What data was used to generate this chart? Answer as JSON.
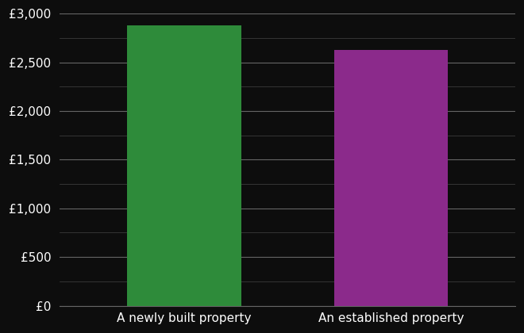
{
  "categories": [
    "A newly built property",
    "An established property"
  ],
  "values": [
    2880,
    2630
  ],
  "bar_colors": [
    "#2e8b3a",
    "#8b2a8b"
  ],
  "background_color": "#0d0d0d",
  "text_color": "#ffffff",
  "major_gridline_color": "#666666",
  "minor_gridline_color": "#444444",
  "ylim": [
    0,
    3000
  ],
  "ytick_major_interval": 500,
  "ytick_minor_interval": 250,
  "bar_width": 0.55,
  "figsize": [
    6.6,
    4.2
  ],
  "dpi": 100,
  "tick_fontsize": 11,
  "xlabel_fontsize": 11
}
